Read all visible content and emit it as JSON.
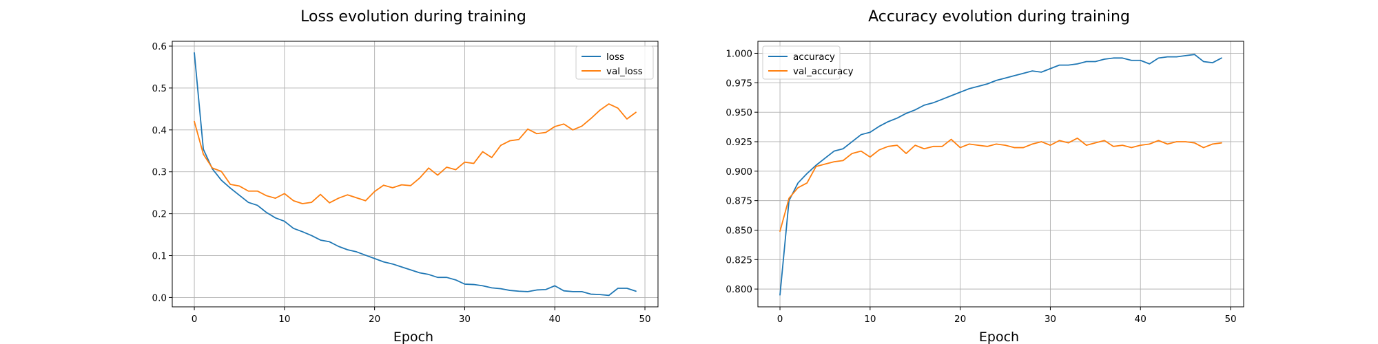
{
  "chart_data": [
    {
      "type": "line",
      "title": "Loss evolution during training",
      "xlabel": "Epoch",
      "ylabel": "",
      "xlim": [
        -2.45,
        51.45
      ],
      "ylim": [
        -0.0223,
        0.6115
      ],
      "x_ticks": [
        0,
        10,
        20,
        30,
        40,
        50
      ],
      "y_ticks": [
        0.0,
        0.1,
        0.2,
        0.3,
        0.4,
        0.5,
        0.6
      ],
      "y_tick_labels": [
        "0.0",
        "0.1",
        "0.2",
        "0.3",
        "0.4",
        "0.5",
        "0.6"
      ],
      "grid": true,
      "legend_position": "top-right",
      "x": [
        0,
        1,
        2,
        3,
        4,
        5,
        6,
        7,
        8,
        9,
        10,
        11,
        12,
        13,
        14,
        15,
        16,
        17,
        18,
        19,
        20,
        21,
        22,
        23,
        24,
        25,
        26,
        27,
        28,
        29,
        30,
        31,
        32,
        33,
        34,
        35,
        36,
        37,
        38,
        39,
        40,
        41,
        42,
        43,
        44,
        45,
        46,
        47,
        48,
        49
      ],
      "series": [
        {
          "name": "loss",
          "color": "#1f77b4",
          "values": [
            0.584,
            0.354,
            0.307,
            0.28,
            0.261,
            0.244,
            0.227,
            0.22,
            0.203,
            0.19,
            0.182,
            0.165,
            0.157,
            0.148,
            0.137,
            0.133,
            0.122,
            0.114,
            0.109,
            0.101,
            0.093,
            0.085,
            0.08,
            0.073,
            0.066,
            0.059,
            0.055,
            0.048,
            0.048,
            0.042,
            0.032,
            0.031,
            0.028,
            0.023,
            0.021,
            0.017,
            0.015,
            0.014,
            0.018,
            0.019,
            0.028,
            0.016,
            0.014,
            0.014,
            0.008,
            0.007,
            0.005,
            0.022,
            0.022,
            0.015
          ]
        },
        {
          "name": "val_loss",
          "color": "#ff7f0e",
          "values": [
            0.42,
            0.342,
            0.309,
            0.301,
            0.27,
            0.266,
            0.254,
            0.254,
            0.243,
            0.237,
            0.248,
            0.231,
            0.224,
            0.227,
            0.246,
            0.226,
            0.237,
            0.245,
            0.238,
            0.231,
            0.253,
            0.268,
            0.262,
            0.269,
            0.267,
            0.285,
            0.309,
            0.292,
            0.311,
            0.305,
            0.323,
            0.32,
            0.348,
            0.334,
            0.363,
            0.374,
            0.377,
            0.402,
            0.391,
            0.394,
            0.408,
            0.414,
            0.4,
            0.409,
            0.427,
            0.447,
            0.462,
            0.452,
            0.426,
            0.442
          ]
        }
      ]
    },
    {
      "type": "line",
      "title": "Accuracy evolution during training",
      "xlabel": "Epoch",
      "ylabel": "",
      "xlim": [
        -2.45,
        51.45
      ],
      "ylim": [
        0.7849,
        1.0102
      ],
      "x_ticks": [
        0,
        10,
        20,
        30,
        40,
        50
      ],
      "y_ticks": [
        0.8,
        0.825,
        0.85,
        0.875,
        0.9,
        0.925,
        0.95,
        0.975,
        1.0
      ],
      "y_tick_labels": [
        "0.800",
        "0.825",
        "0.850",
        "0.875",
        "0.900",
        "0.925",
        "0.950",
        "0.975",
        "1.000"
      ],
      "grid": true,
      "legend_position": "top-left",
      "x": [
        0,
        1,
        2,
        3,
        4,
        5,
        6,
        7,
        8,
        9,
        10,
        11,
        12,
        13,
        14,
        15,
        16,
        17,
        18,
        19,
        20,
        21,
        22,
        23,
        24,
        25,
        26,
        27,
        28,
        29,
        30,
        31,
        32,
        33,
        34,
        35,
        36,
        37,
        38,
        39,
        40,
        41,
        42,
        43,
        44,
        45,
        46,
        47,
        48,
        49
      ],
      "series": [
        {
          "name": "accuracy",
          "color": "#1f77b4",
          "values": [
            0.795,
            0.875,
            0.89,
            0.898,
            0.905,
            0.911,
            0.917,
            0.919,
            0.925,
            0.931,
            0.933,
            0.938,
            0.942,
            0.945,
            0.949,
            0.952,
            0.956,
            0.958,
            0.961,
            0.964,
            0.967,
            0.97,
            0.972,
            0.974,
            0.977,
            0.979,
            0.981,
            0.983,
            0.985,
            0.984,
            0.987,
            0.99,
            0.99,
            0.991,
            0.993,
            0.993,
            0.995,
            0.996,
            0.996,
            0.994,
            0.994,
            0.991,
            0.996,
            0.997,
            0.997,
            0.998,
            0.999,
            0.993,
            0.992,
            0.996
          ]
        },
        {
          "name": "val_accuracy",
          "color": "#ff7f0e",
          "values": [
            0.849,
            0.877,
            0.886,
            0.89,
            0.904,
            0.906,
            0.908,
            0.909,
            0.915,
            0.917,
            0.912,
            0.918,
            0.921,
            0.922,
            0.915,
            0.922,
            0.919,
            0.921,
            0.921,
            0.927,
            0.92,
            0.923,
            0.922,
            0.921,
            0.923,
            0.922,
            0.92,
            0.92,
            0.923,
            0.925,
            0.922,
            0.926,
            0.924,
            0.928,
            0.922,
            0.924,
            0.926,
            0.921,
            0.922,
            0.92,
            0.922,
            0.923,
            0.926,
            0.923,
            0.925,
            0.925,
            0.924,
            0.92,
            0.923,
            0.924
          ]
        }
      ]
    }
  ]
}
